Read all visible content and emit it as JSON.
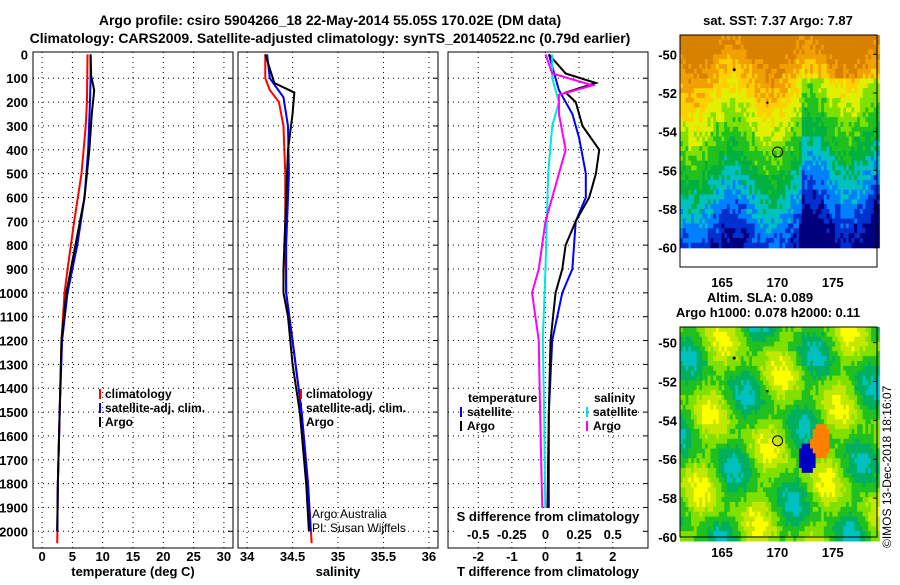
{
  "title_line1": "Argo profile: csiro 5904266_18 22-May-2014 55.05S 170.02E (DM data)",
  "title_line2": "Climatology: CARS2009. Satellite-adjusted climatology: synTS_20140522.nc (0.79d earlier)",
  "credit": "Argo Australia",
  "pi": "PI: Susan Wijffels",
  "copyright": "©IMOS 13-Dec-2018 18:16:07",
  "chart_data": [
    {
      "type": "line",
      "title": "",
      "xlabel": "temperature (deg C)",
      "ylabel": "",
      "xlim": [
        -1.5,
        31.5
      ],
      "ylim": [
        2070,
        -10
      ],
      "xticks": [
        0,
        5,
        10,
        15,
        20,
        25,
        30
      ],
      "yticks": [
        0,
        100,
        200,
        300,
        400,
        500,
        600,
        700,
        800,
        900,
        1000,
        1100,
        1200,
        1300,
        1400,
        1500,
        1600,
        1700,
        1800,
        1900,
        2000
      ],
      "legend": [
        "climatology",
        "satellite-adj. clim.",
        "Argo"
      ],
      "series": [
        {
          "name": "climatology",
          "color": "#ff0000",
          "points": [
            [
              0,
              7.5
            ],
            [
              200,
              7.4
            ],
            [
              300,
              7.2
            ],
            [
              500,
              6.5
            ],
            [
              700,
              5.3
            ],
            [
              900,
              4.2
            ],
            [
              1000,
              3.7
            ],
            [
              1200,
              3.2
            ],
            [
              1500,
              2.9
            ],
            [
              1800,
              2.6
            ],
            [
              2050,
              2.5
            ]
          ]
        },
        {
          "name": "satellite-adj. clim.",
          "color": "#0000ff",
          "points": [
            [
              0,
              8
            ],
            [
              100,
              8
            ],
            [
              200,
              7.9
            ],
            [
              400,
              7.6
            ],
            [
              600,
              7
            ],
            [
              800,
              5.8
            ],
            [
              1000,
              4.2
            ],
            [
              1200,
              3.3
            ],
            [
              1500,
              2.9
            ],
            [
              1800,
              2.6
            ],
            [
              2000,
              2.5
            ]
          ]
        },
        {
          "name": "Argo",
          "color": "#000000",
          "points": [
            [
              0,
              8
            ],
            [
              90,
              8.1
            ],
            [
              150,
              8.6
            ],
            [
              250,
              8.2
            ],
            [
              400,
              7.8
            ],
            [
              600,
              7
            ],
            [
              800,
              5.5
            ],
            [
              1000,
              4
            ],
            [
              1200,
              3.2
            ],
            [
              1500,
              2.9
            ],
            [
              1800,
              2.6
            ],
            [
              2000,
              2.5
            ]
          ]
        }
      ]
    },
    {
      "type": "line",
      "xlabel": "salinity",
      "xlim": [
        33.9,
        36.1
      ],
      "ylim": [
        2070,
        -10
      ],
      "xticks": [
        34,
        34.5,
        35,
        35.5,
        36
      ],
      "legend": [
        "climatology",
        "satellite-adj. clim.",
        "Argo"
      ],
      "series": [
        {
          "name": "climatology",
          "color": "#ff0000",
          "points": [
            [
              0,
              34.2
            ],
            [
              100,
              34.2
            ],
            [
              150,
              34.25
            ],
            [
              200,
              34.35
            ],
            [
              300,
              34.4
            ],
            [
              500,
              34.42
            ],
            [
              800,
              34.42
            ],
            [
              1000,
              34.43
            ],
            [
              1200,
              34.5
            ],
            [
              1500,
              34.6
            ],
            [
              1800,
              34.67
            ],
            [
              2050,
              34.71
            ]
          ]
        },
        {
          "name": "satellite-adj. clim.",
          "color": "#0000ff",
          "points": [
            [
              0,
              34.22
            ],
            [
              100,
              34.25
            ],
            [
              180,
              34.4
            ],
            [
              300,
              34.45
            ],
            [
              500,
              34.46
            ],
            [
              800,
              34.43
            ],
            [
              1000,
              34.43
            ],
            [
              1200,
              34.5
            ],
            [
              1500,
              34.6
            ],
            [
              1800,
              34.67
            ],
            [
              2000,
              34.7
            ]
          ]
        },
        {
          "name": "Argo",
          "color": "#000000",
          "points": [
            [
              0,
              34.2
            ],
            [
              120,
              34.3
            ],
            [
              160,
              34.52
            ],
            [
              250,
              34.5
            ],
            [
              400,
              34.45
            ],
            [
              600,
              34.43
            ],
            [
              900,
              34.4
            ],
            [
              1000,
              34.4
            ],
            [
              1100,
              34.45
            ],
            [
              1300,
              34.5
            ],
            [
              1500,
              34.58
            ],
            [
              1800,
              34.65
            ],
            [
              2000,
              34.68
            ]
          ]
        }
      ]
    },
    {
      "type": "line",
      "xlabel": "T difference from climatology",
      "xlabel2": "S difference from climatology",
      "xlim": [
        -2.9,
        3.05
      ],
      "ylim": [
        2070,
        -10
      ],
      "xticks": [
        -2,
        -1,
        0,
        1,
        2
      ],
      "xticks_s": [
        -0.5,
        -0.25,
        0,
        0.25,
        0.5
      ],
      "legend_t_title": "temperature",
      "legend_s_title": "salinity",
      "legend_t": [
        "satellite",
        "Argo"
      ],
      "legend_s": [
        "satellite",
        "Argo"
      ],
      "series": [
        {
          "name": "T satellite",
          "color": "#0000ff",
          "scale": 1,
          "points": [
            [
              0,
              0.1
            ],
            [
              100,
              0.3
            ],
            [
              150,
              0.4
            ],
            [
              250,
              0.8
            ],
            [
              350,
              1
            ],
            [
              500,
              1.2
            ],
            [
              600,
              1.2
            ],
            [
              700,
              0.9
            ],
            [
              900,
              0.8
            ],
            [
              1000,
              0.5
            ],
            [
              1200,
              0.2
            ],
            [
              1500,
              0.1
            ],
            [
              2000,
              0.1
            ]
          ]
        },
        {
          "name": "T Argo",
          "color": "#000000",
          "scale": 1,
          "points": [
            [
              0,
              0.1
            ],
            [
              80,
              0.6
            ],
            [
              120,
              1.5
            ],
            [
              160,
              0.6
            ],
            [
              200,
              0.9
            ],
            [
              300,
              1.1
            ],
            [
              400,
              1.6
            ],
            [
              500,
              1.5
            ],
            [
              600,
              1.3
            ],
            [
              700,
              0.9
            ],
            [
              800,
              0.6
            ],
            [
              900,
              0.5
            ],
            [
              1000,
              0.3
            ],
            [
              1200,
              0.15
            ],
            [
              1500,
              0.1
            ],
            [
              2000,
              0.05
            ]
          ]
        },
        {
          "name": "S satellite",
          "color": "#00e5e5",
          "scale": 4,
          "points": [
            [
              0,
              0.05
            ],
            [
              100,
              0.05
            ],
            [
              200,
              0.1
            ],
            [
              300,
              0.05
            ],
            [
              500,
              0.02
            ],
            [
              700,
              0.01
            ],
            [
              900,
              0
            ],
            [
              1200,
              -0.02
            ],
            [
              1500,
              -0.01
            ],
            [
              2000,
              0
            ]
          ]
        },
        {
          "name": "S Argo",
          "color": "#ff00ff",
          "scale": 4,
          "points": [
            [
              0,
              0
            ],
            [
              80,
              0.05
            ],
            [
              130,
              0.35
            ],
            [
              170,
              0.1
            ],
            [
              250,
              0.1
            ],
            [
              400,
              0.15
            ],
            [
              500,
              0.1
            ],
            [
              700,
              0
            ],
            [
              900,
              -0.05
            ],
            [
              1000,
              -0.1
            ],
            [
              1200,
              -0.05
            ],
            [
              1500,
              -0.04
            ],
            [
              2000,
              -0.02
            ]
          ]
        }
      ]
    },
    {
      "type": "heatmap",
      "title": "sat. SST: 7.37 Argo: 7.87",
      "xlim": [
        161.2,
        179
      ],
      "ylim": [
        -61,
        -49
      ],
      "xticks": [
        165,
        170,
        175
      ],
      "yticks": [
        -50,
        -52,
        -54,
        -56,
        -58,
        -60
      ],
      "marker": [
        170.02,
        -55.05
      ]
    },
    {
      "type": "heatmap",
      "title": "Altim. SLA: 0.089",
      "subtitle": "Argo h1000: 0.078 h2000: 0.11",
      "xlim": [
        161.2,
        179
      ],
      "ylim": [
        -60,
        -49.2
      ],
      "xticks": [
        165,
        170,
        175
      ],
      "yticks": [
        -50,
        -52,
        -54,
        -56,
        -58,
        -60
      ],
      "marker": [
        170.02,
        -55.05
      ]
    }
  ]
}
